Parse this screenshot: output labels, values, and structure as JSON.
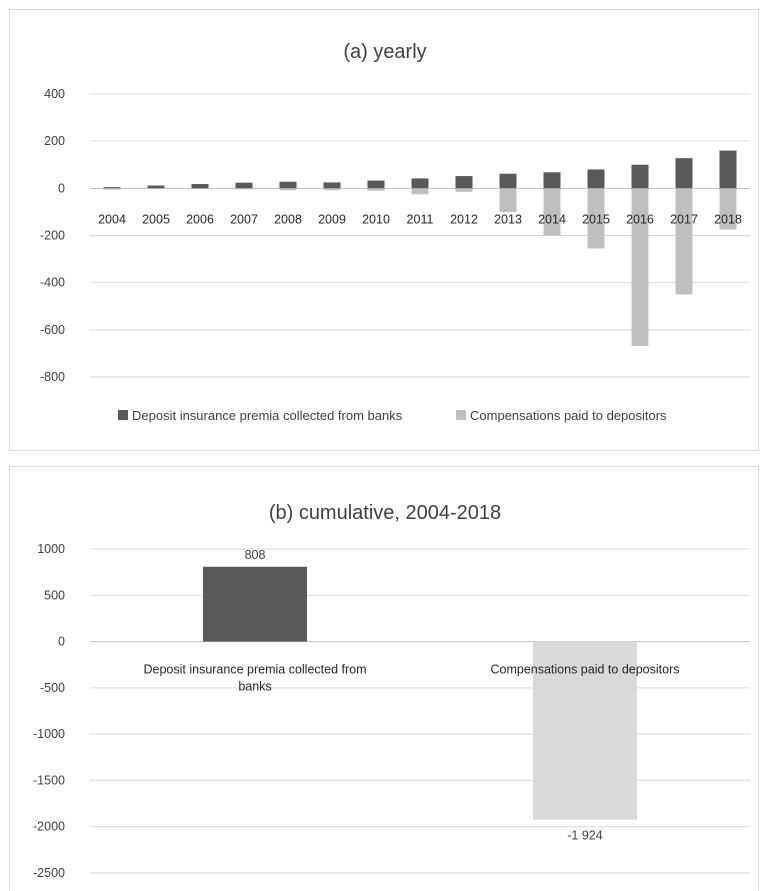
{
  "chart_data": [
    {
      "type": "bar",
      "title": "(a) yearly",
      "categories": [
        "2004",
        "2005",
        "2006",
        "2007",
        "2008",
        "2009",
        "2010",
        "2011",
        "2012",
        "2013",
        "2014",
        "2015",
        "2016",
        "2017",
        "2018"
      ],
      "series": [
        {
          "name": "Deposit insurance premia collected from banks",
          "color": "#595959",
          "values": [
            5,
            12,
            18,
            24,
            28,
            25,
            33,
            42,
            52,
            62,
            68,
            80,
            100,
            128,
            160
          ]
        },
        {
          "name": "Compensations paid to depositors",
          "color": "#bfbfbf",
          "values": [
            -5,
            -3,
            -2,
            -4,
            -8,
            -8,
            -10,
            -25,
            -15,
            -100,
            -200,
            -255,
            -668,
            -450,
            -175
          ]
        }
      ],
      "ylim": [
        -800,
        400
      ],
      "yticks": [
        "400",
        "200",
        "0",
        "-200",
        "-400",
        "-600",
        "-800"
      ],
      "ytick_values": [
        400,
        200,
        0,
        -200,
        -400,
        -600,
        -800
      ],
      "legend_position": "bottom",
      "grid": true
    },
    {
      "type": "bar",
      "title": "(b) cumulative, 2004-2018",
      "categories": [
        "Deposit insurance premia collected from banks",
        "Compensations paid to depositors"
      ],
      "category_lines": [
        [
          "Deposit insurance premia collected from",
          "banks"
        ],
        [
          "Compensations paid to depositors"
        ]
      ],
      "values": [
        808,
        -1924
      ],
      "data_labels": [
        "808",
        "-1 924"
      ],
      "colors": [
        "#595959",
        "#d9d9d9"
      ],
      "ylim": [
        -2500,
        1000
      ],
      "yticks": [
        "1000",
        "500",
        "0",
        "-500",
        "-1000",
        "-1500",
        "-2000",
        "-2500"
      ],
      "ytick_values": [
        1000,
        500,
        0,
        -500,
        -1000,
        -1500,
        -2000,
        -2500
      ],
      "grid": true
    }
  ]
}
